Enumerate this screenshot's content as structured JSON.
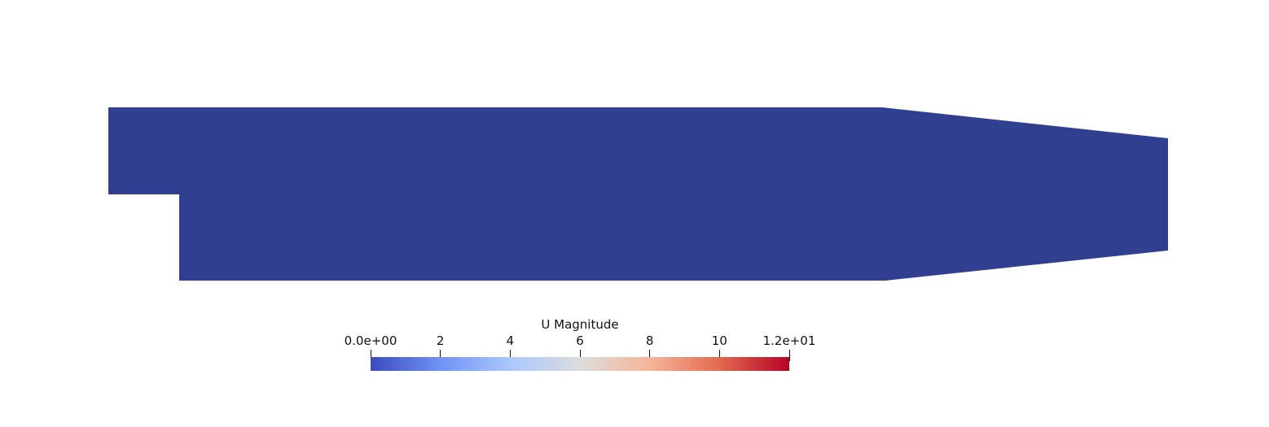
{
  "field": {
    "name": "U Magnitude",
    "domain_color": "#303f8f"
  },
  "colorbar": {
    "title": "U Magnitude",
    "range": [
      0,
      12
    ],
    "colormap": [
      "#3b4cc0",
      "#6f92f3",
      "#aac7fd",
      "#dddcdc",
      "#f6b599",
      "#e3694f",
      "#b40426"
    ],
    "ticks": [
      {
        "value": 0,
        "label": "0.0e+00"
      },
      {
        "value": 2,
        "label": "2"
      },
      {
        "value": 4,
        "label": "4"
      },
      {
        "value": 6,
        "label": "6"
      },
      {
        "value": 8,
        "label": "8"
      },
      {
        "value": 10,
        "label": "10"
      },
      {
        "value": 12,
        "label": "1.2e+01"
      }
    ]
  }
}
